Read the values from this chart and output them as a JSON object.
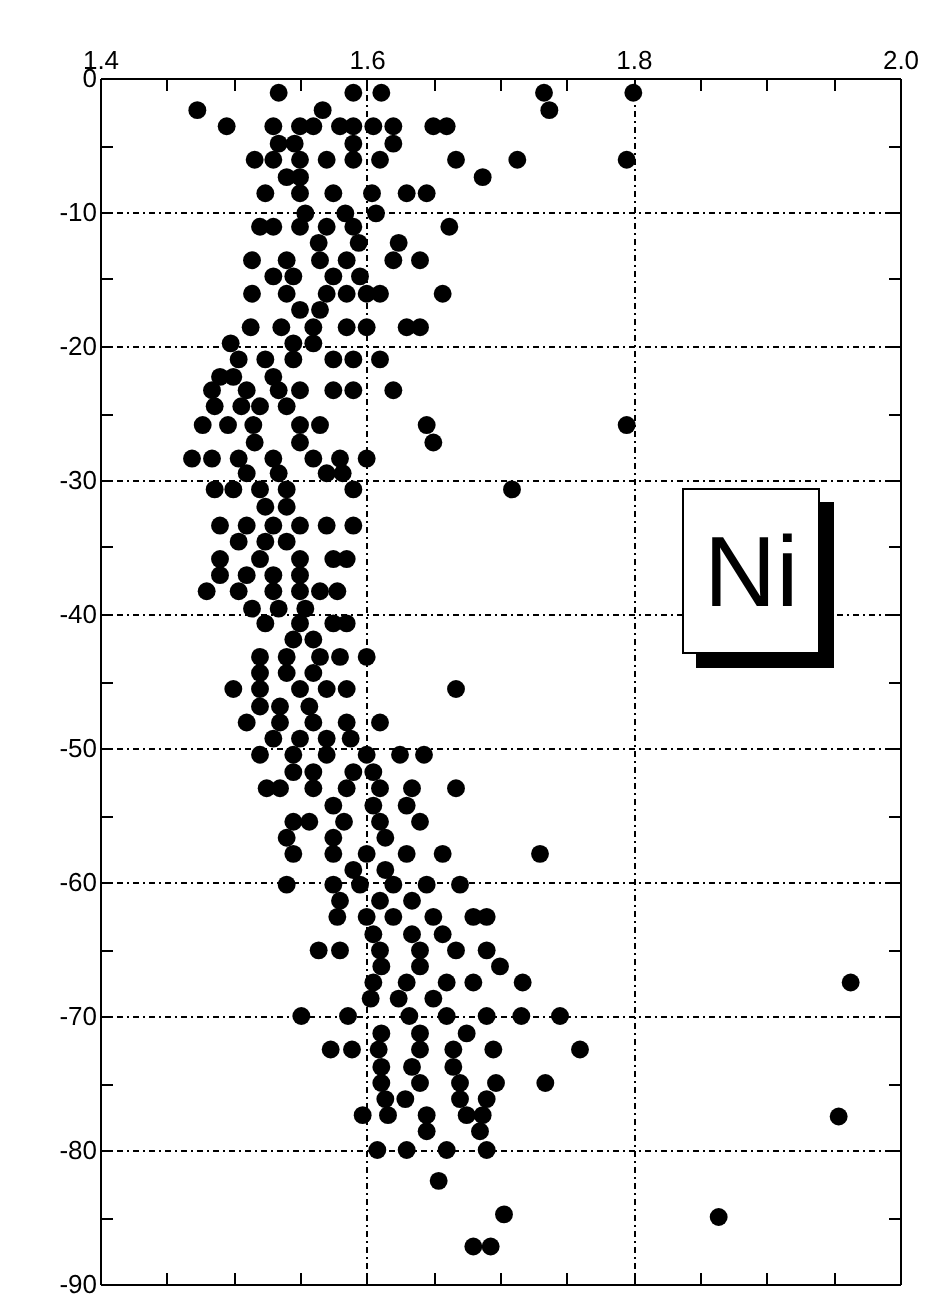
{
  "chart_data": {
    "type": "scatter",
    "marker": "circle",
    "grid": true,
    "xlim": [
      1.4,
      2.0
    ],
    "xticks": [
      1.4,
      {
        "value": 1.45,
        "label": null
      },
      {
        "value": 1.5,
        "label": null
      },
      {
        "value": 1.55,
        "label": null
      },
      1.6,
      {
        "value": 1.65,
        "label": null
      },
      {
        "value": 1.7,
        "label": null
      },
      {
        "value": 1.75,
        "label": null
      },
      1.8,
      {
        "value": 1.85,
        "label": null
      },
      {
        "value": 1.9,
        "label": null
      },
      {
        "value": 1.95,
        "label": null
      },
      {
        "value": 2.0,
        "label": "2.0"
      }
    ],
    "ylim": [
      -90,
      0
    ],
    "yticks": [
      0,
      {
        "value": -5,
        "label": null
      },
      -10,
      {
        "value": -15,
        "label": null
      },
      -20,
      {
        "value": -25,
        "label": null
      },
      -30,
      {
        "value": -35,
        "label": null
      },
      -40,
      {
        "value": -45,
        "label": null
      },
      -50,
      {
        "value": -55,
        "label": null
      },
      -60,
      {
        "value": -65,
        "label": null
      },
      -70,
      {
        "value": -75,
        "label": null
      },
      -80,
      {
        "value": -85,
        "label": null
      },
      -90
    ],
    "annotations": [
      "Ni"
    ],
    "x": [
      1.534,
      1.59,
      1.611,
      1.733,
      1.8,
      1.473,
      1.567,
      1.737,
      1.495,
      1.53,
      1.55,
      1.56,
      1.58,
      1.59,
      1.605,
      1.62,
      1.65,
      1.66,
      1.534,
      1.546,
      1.59,
      1.62,
      1.516,
      1.53,
      1.55,
      1.57,
      1.59,
      1.61,
      1.667,
      1.713,
      1.795,
      1.54,
      1.55,
      1.687,
      1.524,
      1.55,
      1.575,
      1.604,
      1.63,
      1.645,
      1.554,
      1.584,
      1.607,
      1.52,
      1.53,
      1.55,
      1.57,
      1.59,
      1.662,
      1.564,
      1.594,
      1.624,
      1.514,
      1.54,
      1.565,
      1.585,
      1.62,
      1.64,
      1.53,
      1.545,
      1.575,
      1.595,
      1.514,
      1.54,
      1.57,
      1.585,
      1.6,
      1.61,
      1.657,
      1.55,
      1.565,
      1.513,
      1.536,
      1.56,
      1.585,
      1.6,
      1.63,
      1.64,
      1.498,
      1.545,
      1.56,
      1.504,
      1.524,
      1.545,
      1.575,
      1.59,
      1.61,
      1.49,
      1.5,
      1.53,
      1.484,
      1.51,
      1.534,
      1.55,
      1.575,
      1.59,
      1.62,
      1.486,
      1.506,
      1.52,
      1.54,
      1.477,
      1.496,
      1.515,
      1.55,
      1.565,
      1.645,
      1.795,
      1.516,
      1.55,
      1.65,
      1.469,
      1.484,
      1.504,
      1.53,
      1.56,
      1.58,
      1.6,
      1.51,
      1.534,
      1.57,
      1.582,
      1.486,
      1.5,
      1.52,
      1.54,
      1.59,
      1.709,
      1.524,
      1.54,
      1.49,
      1.51,
      1.53,
      1.55,
      1.57,
      1.59,
      1.504,
      1.524,
      1.54,
      1.49,
      1.52,
      1.55,
      1.575,
      1.585,
      1.49,
      1.51,
      1.53,
      1.55,
      1.48,
      1.504,
      1.53,
      1.55,
      1.565,
      1.578,
      1.514,
      1.534,
      1.554,
      1.524,
      1.55,
      1.575,
      1.585,
      1.545,
      1.56,
      1.52,
      1.54,
      1.565,
      1.58,
      1.6,
      1.52,
      1.54,
      1.56,
      1.5,
      1.52,
      1.55,
      1.57,
      1.585,
      1.667,
      1.52,
      1.535,
      1.557,
      1.51,
      1.535,
      1.56,
      1.585,
      1.61,
      1.53,
      1.55,
      1.57,
      1.588,
      1.52,
      1.545,
      1.57,
      1.6,
      1.625,
      1.643,
      1.545,
      1.56,
      1.59,
      1.605,
      1.525,
      1.535,
      1.56,
      1.585,
      1.61,
      1.634,
      1.667,
      1.575,
      1.605,
      1.63,
      1.545,
      1.557,
      1.583,
      1.61,
      1.64,
      1.54,
      1.575,
      1.614,
      1.545,
      1.575,
      1.6,
      1.63,
      1.657,
      1.73,
      1.59,
      1.614,
      1.54,
      1.575,
      1.595,
      1.62,
      1.645,
      1.67,
      1.58,
      1.61,
      1.634,
      1.578,
      1.6,
      1.62,
      1.65,
      1.68,
      1.69,
      1.605,
      1.634,
      1.657,
      1.564,
      1.58,
      1.61,
      1.64,
      1.667,
      1.69,
      1.611,
      1.64,
      1.7,
      1.605,
      1.63,
      1.66,
      1.68,
      1.717,
      1.603,
      1.624,
      1.65,
      1.551,
      1.586,
      1.632,
      1.66,
      1.69,
      1.716,
      1.745,
      1.611,
      1.64,
      1.675,
      1.573,
      1.589,
      1.609,
      1.64,
      1.665,
      1.695,
      1.76,
      1.611,
      1.634,
      1.665,
      1.611,
      1.64,
      1.67,
      1.697,
      1.734,
      1.614,
      1.629,
      1.67,
      1.69,
      1.597,
      1.616,
      1.645,
      1.675,
      1.687,
      1.645,
      1.685,
      1.608,
      1.63,
      1.66,
      1.69,
      1.654,
      1.703,
      1.68,
      1.693,
      1.963,
      1.954,
      1.864
    ],
    "series": [
      {
        "color": "#000000",
        "values": [
          -1.1,
          -1.1,
          -1.1,
          -1.1,
          -1.1,
          -2.4,
          -2.4,
          -2.4,
          -3.6,
          -3.6,
          -3.6,
          -3.6,
          -3.6,
          -3.6,
          -3.6,
          -3.6,
          -3.6,
          -3.6,
          -4.9,
          -4.9,
          -4.9,
          -4.9,
          -6.1,
          -6.1,
          -6.1,
          -6.1,
          -6.1,
          -6.1,
          -6.1,
          -6.1,
          -6.1,
          -7.4,
          -7.4,
          -7.4,
          -8.6,
          -8.6,
          -8.6,
          -8.6,
          -8.6,
          -8.6,
          -10.1,
          -10.1,
          -10.1,
          -11.1,
          -11.1,
          -11.1,
          -11.1,
          -11.1,
          -11.1,
          -12.3,
          -12.3,
          -12.3,
          -13.6,
          -13.6,
          -13.6,
          -13.6,
          -13.6,
          -13.6,
          -14.8,
          -14.8,
          -14.8,
          -14.8,
          -16.1,
          -16.1,
          -16.1,
          -16.1,
          -16.1,
          -16.1,
          -16.1,
          -17.3,
          -17.3,
          -18.6,
          -18.6,
          -18.6,
          -18.6,
          -18.6,
          -18.6,
          -18.6,
          -19.8,
          -19.8,
          -19.8,
          -21,
          -21,
          -21,
          -21,
          -21,
          -21,
          -22.3,
          -22.3,
          -22.3,
          -23.3,
          -23.3,
          -23.3,
          -23.3,
          -23.3,
          -23.3,
          -23.3,
          -24.5,
          -24.5,
          -24.5,
          -24.5,
          -25.9,
          -25.9,
          -25.9,
          -25.9,
          -25.9,
          -25.9,
          -25.9,
          -27.2,
          -27.2,
          -27.2,
          -28.4,
          -28.4,
          -28.4,
          -28.4,
          -28.4,
          -28.4,
          -28.4,
          -29.5,
          -29.5,
          -29.5,
          -29.5,
          -30.7,
          -30.7,
          -30.7,
          -30.7,
          -30.7,
          -30.7,
          -32,
          -32,
          -33.4,
          -33.4,
          -33.4,
          -33.4,
          -33.4,
          -33.4,
          -34.6,
          -34.6,
          -34.6,
          -35.9,
          -35.9,
          -35.9,
          -35.9,
          -35.9,
          -37.1,
          -37.1,
          -37.1,
          -37.1,
          -38.3,
          -38.3,
          -38.3,
          -38.3,
          -38.3,
          -38.3,
          -39.6,
          -39.6,
          -39.6,
          -40.7,
          -40.7,
          -40.7,
          -40.7,
          -41.9,
          -41.9,
          -43.2,
          -43.2,
          -43.2,
          -43.2,
          -43.2,
          -44.4,
          -44.4,
          -44.4,
          -45.6,
          -45.6,
          -45.6,
          -45.6,
          -45.6,
          -45.6,
          -46.9,
          -46.9,
          -46.9,
          -48.1,
          -48.1,
          -48.1,
          -48.1,
          -48.1,
          -49.3,
          -49.3,
          -49.3,
          -49.3,
          -50.5,
          -50.5,
          -50.5,
          -50.5,
          -50.5,
          -50.5,
          -51.8,
          -51.8,
          -51.8,
          -51.8,
          -53,
          -53,
          -53,
          -53,
          -53,
          -53,
          -53,
          -54.3,
          -54.3,
          -54.3,
          -55.5,
          -55.5,
          -55.5,
          -55.5,
          -55.5,
          -56.7,
          -56.7,
          -56.7,
          -57.9,
          -57.9,
          -57.9,
          -57.9,
          -57.9,
          -57.9,
          -59.1,
          -59.1,
          -60.2,
          -60.2,
          -60.2,
          -60.2,
          -60.2,
          -60.2,
          -61.4,
          -61.4,
          -61.4,
          -62.6,
          -62.6,
          -62.6,
          -62.6,
          -62.6,
          -62.6,
          -63.9,
          -63.9,
          -63.9,
          -65.1,
          -65.1,
          -65.1,
          -65.1,
          -65.1,
          -65.1,
          -66.3,
          -66.3,
          -66.3,
          -67.5,
          -67.5,
          -67.5,
          -67.5,
          -67.5,
          -68.7,
          -68.7,
          -68.7,
          -70,
          -70,
          -70,
          -70,
          -70,
          -70,
          -70,
          -71.3,
          -71.3,
          -71.3,
          -72.5,
          -72.5,
          -72.5,
          -72.5,
          -72.5,
          -72.5,
          -72.5,
          -73.8,
          -73.8,
          -73.8,
          -75,
          -75,
          -75,
          -75,
          -75,
          -76.2,
          -76.2,
          -76.2,
          -76.2,
          -77.4,
          -77.4,
          -77.4,
          -77.4,
          -77.4,
          -78.6,
          -78.6,
          -80,
          -80,
          -80,
          -80,
          -82.3,
          -84.8,
          -87.2,
          -87.2,
          -67.5,
          -77.5,
          -85
        ]
      }
    ]
  }
}
